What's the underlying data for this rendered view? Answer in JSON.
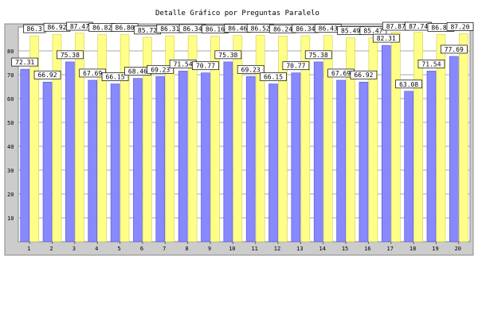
{
  "chart_data": {
    "type": "bar",
    "title": "Detalle Gráfico por Preguntas Paralelo",
    "xlabel": "",
    "ylabel": "",
    "ylim": [
      0,
      90
    ],
    "y_ticks": [
      10,
      20,
      30,
      40,
      50,
      60,
      70,
      80
    ],
    "grid": true,
    "legend": "none",
    "categories": [
      "1",
      "2",
      "3",
      "4",
      "5",
      "6",
      "7",
      "8",
      "9",
      "10",
      "11",
      "12",
      "13",
      "14",
      "15",
      "16",
      "17",
      "18",
      "19",
      "20"
    ],
    "series": [
      {
        "color": "#8888ff",
        "values": [
          72.31,
          66.92,
          75.38,
          67.69,
          66.15,
          68.46,
          69.23,
          71.54,
          70.77,
          75.38,
          69.23,
          66.15,
          70.77,
          75.38,
          67.69,
          66.92,
          82.31,
          63.08,
          71.54,
          77.69
        ]
      },
      {
        "color": "#ffff88",
        "values": [
          86.3,
          86.92,
          87.47,
          86.82,
          86.8,
          85.72,
          86.31,
          86.34,
          86.16,
          86.46,
          86.52,
          86.24,
          86.34,
          86.43,
          85.49,
          85.47,
          87.87,
          87.74,
          86.88,
          87.2
        ]
      }
    ],
    "value_labels": [
      [
        "72.31",
        "66.92",
        "75.38",
        "67.69",
        "66.15",
        "68.46",
        "69.23",
        "71.54",
        "70.77",
        "75.38",
        "69.23",
        "66.15",
        "70.77",
        "75.38",
        "67.69",
        "66.92",
        "82.31",
        "63.08",
        "71.54",
        "77.69"
      ],
      [
        "86.3",
        "86.92",
        "87.47",
        "86.82",
        "86.80",
        "85.72",
        "86.31",
        "86.34",
        "86.16",
        "86.46",
        "86.52",
        "86.24",
        "86.34",
        "86.43",
        "85.49",
        "85.47",
        "87.87",
        "87.74",
        "86.88",
        "87.20"
      ]
    ],
    "colors": {
      "background": "#cccccc",
      "border": "#888888",
      "grid": "#aaaaaa",
      "label_box": "#ffffff"
    }
  }
}
